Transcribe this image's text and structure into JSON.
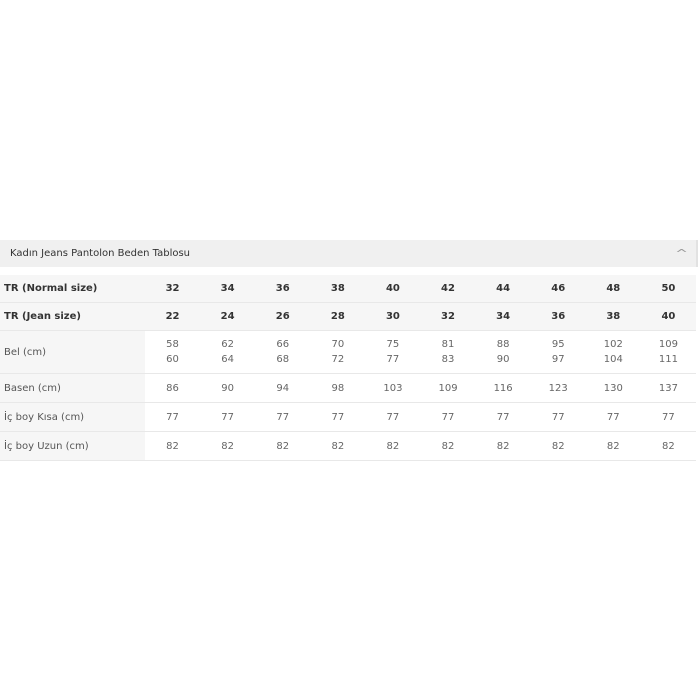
{
  "title": "Kadın Jeans Pantolon Beden Tablosu",
  "collapse_icon": "chevron-up-icon",
  "rows": [
    {
      "label": "TR (Normal size)",
      "header": true,
      "values": [
        "32",
        "34",
        "36",
        "38",
        "40",
        "42",
        "44",
        "46",
        "48",
        "50"
      ]
    },
    {
      "label": "TR (Jean size)",
      "header": true,
      "values": [
        "22",
        "24",
        "26",
        "28",
        "30",
        "32",
        "34",
        "36",
        "38",
        "40"
      ]
    },
    {
      "label": "Bel (cm)",
      "header": false,
      "values": [
        [
          "58",
          "60"
        ],
        [
          "62",
          "64"
        ],
        [
          "66",
          "68"
        ],
        [
          "70",
          "72"
        ],
        [
          "75",
          "77"
        ],
        [
          "81",
          "83"
        ],
        [
          "88",
          "90"
        ],
        [
          "95",
          "97"
        ],
        [
          "102",
          "104"
        ],
        [
          "109",
          "111"
        ]
      ]
    },
    {
      "label": "Basen (cm)",
      "header": false,
      "values": [
        "86",
        "90",
        "94",
        "98",
        "103",
        "109",
        "116",
        "123",
        "130",
        "137"
      ]
    },
    {
      "label": "İç boy Kısa (cm)",
      "header": false,
      "values": [
        "77",
        "77",
        "77",
        "77",
        "77",
        "77",
        "77",
        "77",
        "77",
        "77"
      ]
    },
    {
      "label": "İç boy Uzun (cm)",
      "header": false,
      "values": [
        "82",
        "82",
        "82",
        "82",
        "82",
        "82",
        "82",
        "82",
        "82",
        "82"
      ]
    }
  ]
}
